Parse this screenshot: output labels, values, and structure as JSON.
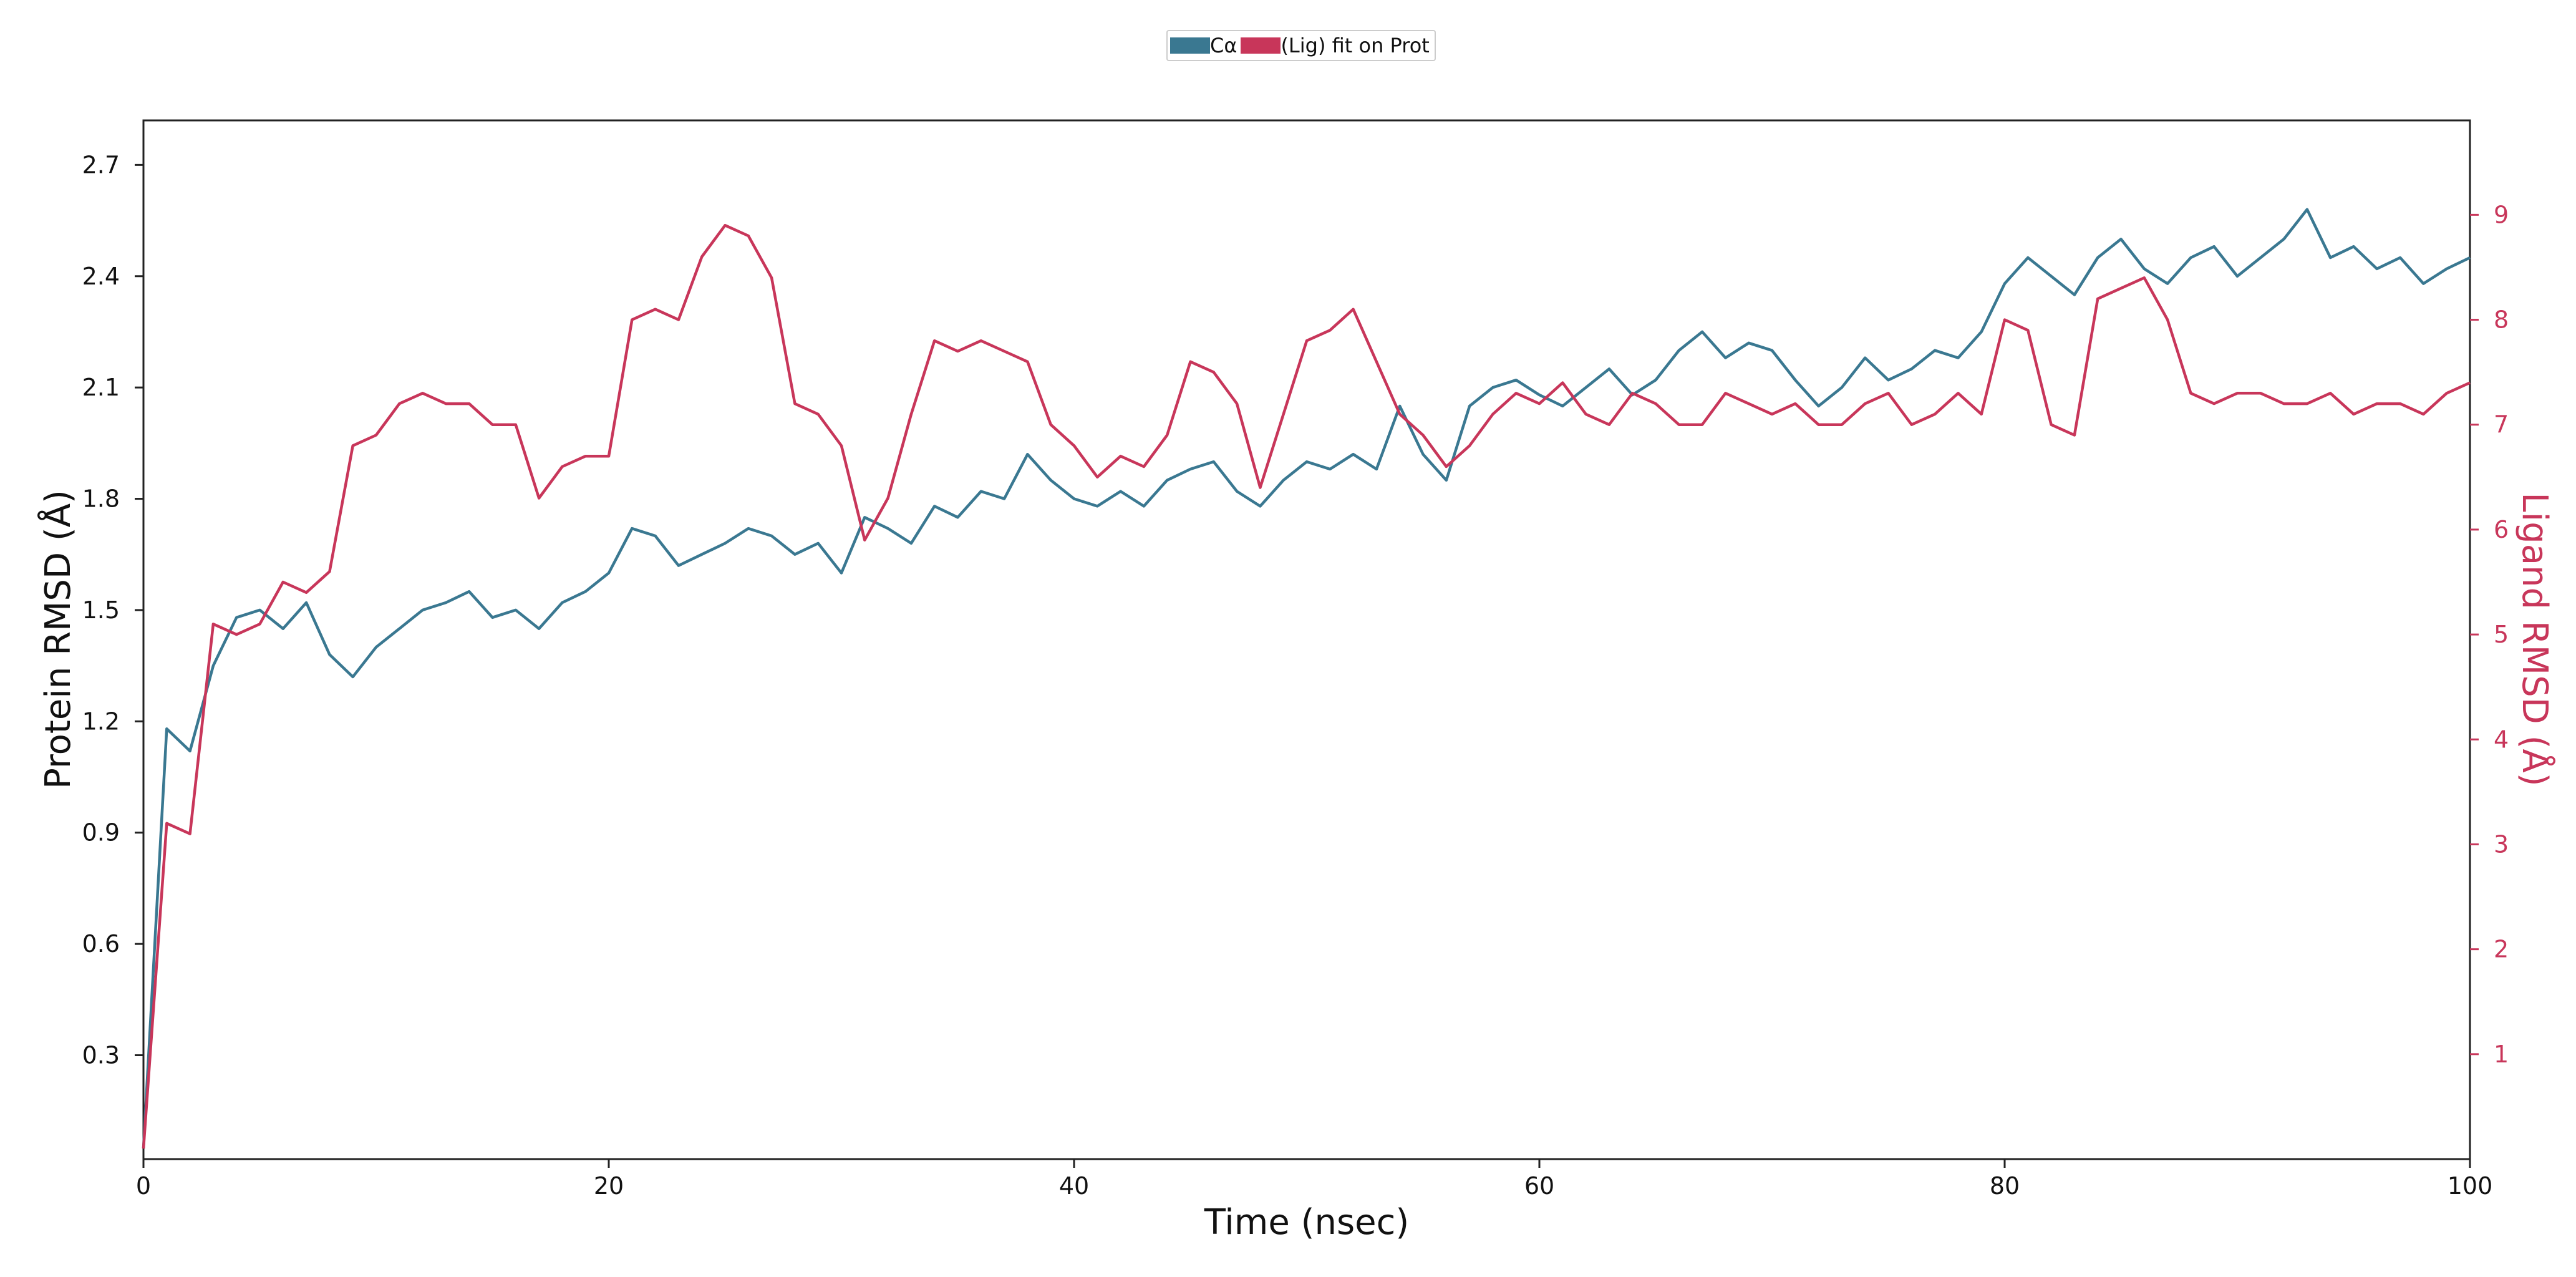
{
  "legend": {
    "position": "top-center",
    "series1_label": "Cα",
    "series2_label": "(Lig) fit on Prot"
  },
  "colors": {
    "protein": "#3a7891",
    "ligand": "#c8365a"
  },
  "chart_data": {
    "type": "line",
    "title": "",
    "xlabel": "Time (nsec)",
    "ylabel_left": "Protein RMSD (Å)",
    "ylabel_right": "Ligand RMSD (Å)",
    "xlim": [
      0,
      100
    ],
    "ylim_left": [
      0.02,
      2.82
    ],
    "ylim_right": [
      0,
      9.9
    ],
    "xticks": [
      0,
      20,
      40,
      60,
      80,
      100
    ],
    "yticks_left": [
      0.3,
      0.6,
      0.9,
      1.2,
      1.5,
      1.8,
      2.1,
      2.4,
      2.7
    ],
    "yticks_right": [
      1,
      2,
      3,
      4,
      5,
      6,
      7,
      8,
      9
    ],
    "grid": false,
    "series": [
      {
        "name": "Cα",
        "axis": "left",
        "color": "#3a7891",
        "x": [
          0,
          1,
          2,
          3,
          4,
          5,
          6,
          7,
          8,
          9,
          10,
          11,
          12,
          13,
          14,
          15,
          16,
          17,
          18,
          19,
          20,
          21,
          22,
          23,
          24,
          25,
          26,
          27,
          28,
          29,
          30,
          31,
          32,
          33,
          34,
          35,
          36,
          37,
          38,
          39,
          40,
          41,
          42,
          43,
          44,
          45,
          46,
          47,
          48,
          49,
          50,
          51,
          52,
          53,
          54,
          55,
          56,
          57,
          58,
          59,
          60,
          61,
          62,
          63,
          64,
          65,
          66,
          67,
          68,
          69,
          70,
          71,
          72,
          73,
          74,
          75,
          76,
          77,
          78,
          79,
          80,
          81,
          82,
          83,
          84,
          85,
          86,
          87,
          88,
          89,
          90,
          91,
          92,
          93,
          94,
          95,
          96,
          97,
          98,
          99,
          100
        ],
        "values": [
          0.05,
          1.18,
          1.12,
          1.35,
          1.48,
          1.5,
          1.45,
          1.52,
          1.38,
          1.32,
          1.4,
          1.45,
          1.5,
          1.52,
          1.55,
          1.48,
          1.5,
          1.45,
          1.52,
          1.55,
          1.6,
          1.72,
          1.7,
          1.62,
          1.65,
          1.68,
          1.72,
          1.7,
          1.65,
          1.68,
          1.6,
          1.75,
          1.72,
          1.68,
          1.78,
          1.75,
          1.82,
          1.8,
          1.92,
          1.85,
          1.8,
          1.78,
          1.82,
          1.78,
          1.85,
          1.88,
          1.9,
          1.82,
          1.78,
          1.85,
          1.9,
          1.88,
          1.92,
          1.88,
          2.05,
          1.92,
          1.85,
          2.05,
          2.1,
          2.12,
          2.08,
          2.05,
          2.1,
          2.15,
          2.08,
          2.12,
          2.2,
          2.25,
          2.18,
          2.22,
          2.2,
          2.12,
          2.05,
          2.1,
          2.18,
          2.12,
          2.15,
          2.2,
          2.18,
          2.25,
          2.38,
          2.45,
          2.4,
          2.35,
          2.45,
          2.5,
          2.42,
          2.38,
          2.45,
          2.48,
          2.4,
          2.45,
          2.5,
          2.58,
          2.45,
          2.48,
          2.42,
          2.45,
          2.38,
          2.42,
          2.45
        ]
      },
      {
        "name": "(Lig) fit on Prot",
        "axis": "right",
        "color": "#c8365a",
        "x": [
          0,
          1,
          2,
          3,
          4,
          5,
          6,
          7,
          8,
          9,
          10,
          11,
          12,
          13,
          14,
          15,
          16,
          17,
          18,
          19,
          20,
          21,
          22,
          23,
          24,
          25,
          26,
          27,
          28,
          29,
          30,
          31,
          32,
          33,
          34,
          35,
          36,
          37,
          38,
          39,
          40,
          41,
          42,
          43,
          44,
          45,
          46,
          47,
          48,
          49,
          50,
          51,
          52,
          53,
          54,
          55,
          56,
          57,
          58,
          59,
          60,
          61,
          62,
          63,
          64,
          65,
          66,
          67,
          68,
          69,
          70,
          71,
          72,
          73,
          74,
          75,
          76,
          77,
          78,
          79,
          80,
          81,
          82,
          83,
          84,
          85,
          86,
          87,
          88,
          89,
          90,
          91,
          92,
          93,
          94,
          95,
          96,
          97,
          98,
          99,
          100
        ],
        "values": [
          0.1,
          3.2,
          3.1,
          5.1,
          5.0,
          5.1,
          5.5,
          5.4,
          5.6,
          6.8,
          6.9,
          7.2,
          7.3,
          7.2,
          7.2,
          7.0,
          7.0,
          6.3,
          6.6,
          6.7,
          6.7,
          8.0,
          8.1,
          8.0,
          8.6,
          8.9,
          8.8,
          8.4,
          7.2,
          7.1,
          6.8,
          5.9,
          6.3,
          7.1,
          7.8,
          7.7,
          7.8,
          7.7,
          7.6,
          7.0,
          6.8,
          6.5,
          6.7,
          6.6,
          6.9,
          7.6,
          7.5,
          7.2,
          6.4,
          7.1,
          7.8,
          7.9,
          8.1,
          7.6,
          7.1,
          6.9,
          6.6,
          6.8,
          7.1,
          7.3,
          7.2,
          7.4,
          7.1,
          7.0,
          7.3,
          7.2,
          7.0,
          7.0,
          7.3,
          7.2,
          7.1,
          7.2,
          7.0,
          7.0,
          7.2,
          7.3,
          7.0,
          7.1,
          7.3,
          7.1,
          8.0,
          7.9,
          7.0,
          6.9,
          8.2,
          8.3,
          8.4,
          8.0,
          7.3,
          7.2,
          7.3,
          7.3,
          7.2,
          7.2,
          7.3,
          7.1,
          7.2,
          7.2,
          7.1,
          7.3,
          7.4
        ]
      }
    ]
  }
}
